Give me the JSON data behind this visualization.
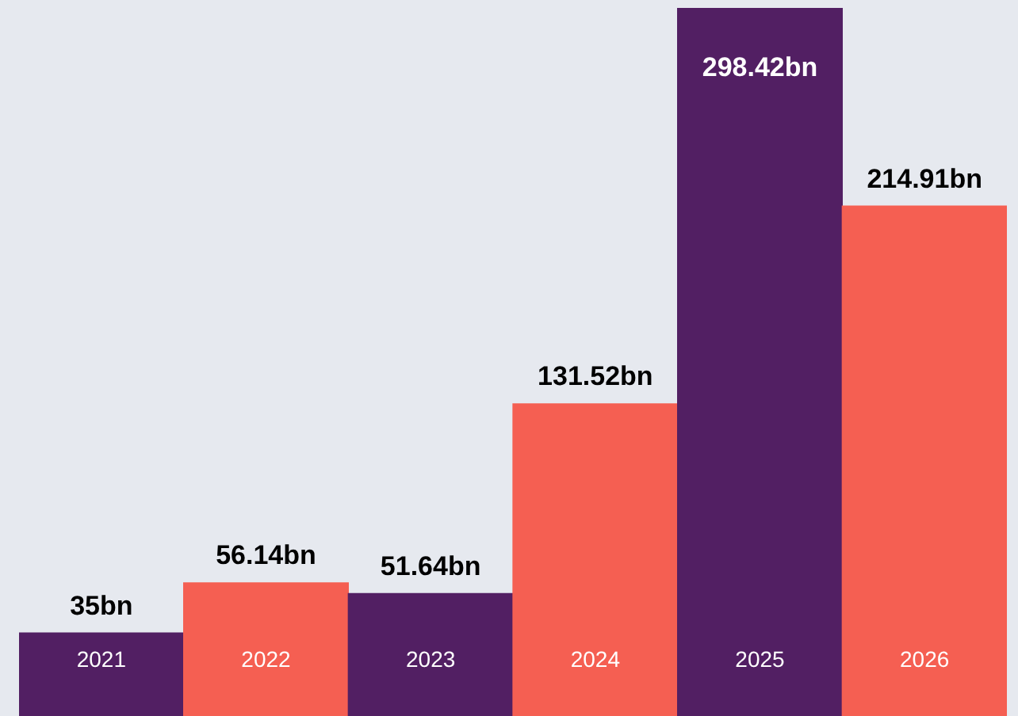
{
  "chart_data": {
    "type": "bar",
    "categories": [
      "2021",
      "2022",
      "2023",
      "2024",
      "2025",
      "2026"
    ],
    "values": [
      35,
      56.14,
      51.64,
      131.52,
      298.42,
      214.91
    ],
    "value_labels": [
      "35bn",
      "56.14bn",
      "51.64bn",
      "131.52bn",
      "298.42bn",
      "214.91bn"
    ],
    "colors": [
      "#521f63",
      "#f55f52",
      "#521f63",
      "#f55f52",
      "#521f63",
      "#f55f52"
    ],
    "tick_labels": "x"
  }
}
